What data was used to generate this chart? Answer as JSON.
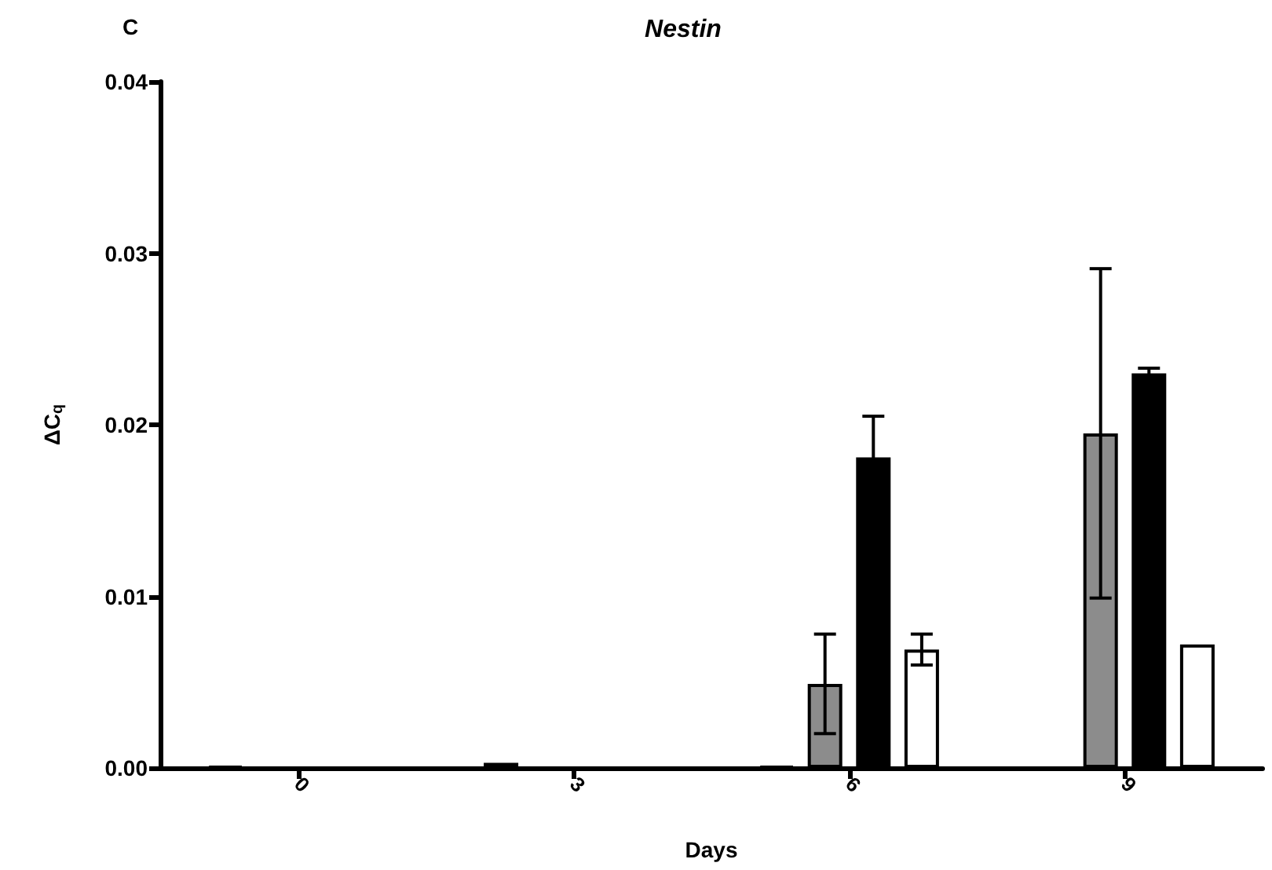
{
  "chart_data": {
    "type": "bar",
    "title": "Nestin",
    "xlabel": "Days",
    "ylabel": "ΔC$_{q}$",
    "annotations": [
      "C"
    ],
    "categories": [
      "0",
      "3",
      "6",
      "9"
    ],
    "series": [
      {
        "color": "#000000",
        "values": [
          0.0001,
          0.0003,
          0.0001,
          null
        ]
      },
      {
        "color": "#8c8c8c",
        "values": [
          null,
          null,
          0.0049,
          0.0195
        ],
        "errors": [
          null,
          null,
          0.0029,
          0.0096
        ]
      },
      {
        "color": "#000000",
        "values": [
          null,
          null,
          0.0181,
          0.023
        ],
        "errors": [
          null,
          null,
          0.0024,
          0.0003
        ]
      },
      {
        "color": "#ffffff",
        "values": [
          null,
          null,
          0.0069,
          0.0072
        ],
        "errors": [
          null,
          null,
          0.0009,
          null
        ]
      }
    ],
    "ylim": [
      0,
      0.04
    ],
    "yticks": [
      {
        "value": 0,
        "label": "0.00"
      },
      {
        "value": 0.01,
        "label": "0.01"
      },
      {
        "value": 0.02,
        "label": "0.02"
      },
      {
        "value": 0.03,
        "label": "0.03"
      },
      {
        "value": 0.04,
        "label": "0.04"
      }
    ],
    "grid": false
  }
}
